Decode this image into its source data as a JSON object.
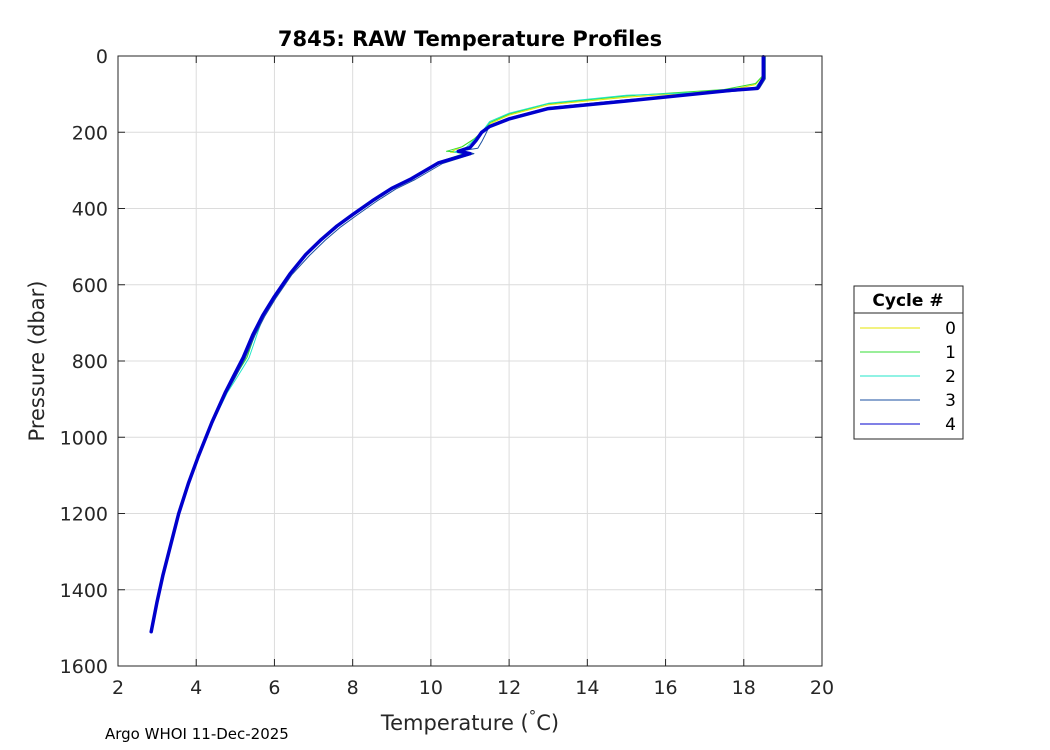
{
  "chart_data": {
    "type": "line",
    "title": "7845: RAW Temperature Profiles",
    "xlabel_main": "Temperature (",
    "xlabel_degree": "°",
    "xlabel_unit": "C)",
    "ylabel": "Pressure (dbar)",
    "xlim": [
      2,
      20
    ],
    "ylim": [
      0,
      1600
    ],
    "y_reversed": true,
    "x_ticks": [
      2,
      4,
      6,
      8,
      10,
      12,
      14,
      16,
      18,
      20
    ],
    "y_ticks": [
      0,
      200,
      400,
      600,
      800,
      1000,
      1200,
      1400,
      1600
    ],
    "grid": true,
    "legend": {
      "title": "Cycle #",
      "placement": "outside-right"
    },
    "series": [
      {
        "name": "0",
        "color": "#e6e600",
        "points": [
          [
            18.5,
            2
          ],
          [
            18.5,
            50
          ],
          [
            18.3,
            75
          ],
          [
            17.6,
            90
          ],
          [
            15.0,
            108
          ],
          [
            13.0,
            128
          ],
          [
            12.0,
            155
          ],
          [
            11.5,
            178
          ],
          [
            11.3,
            200
          ],
          [
            11.1,
            218
          ],
          [
            10.8,
            238
          ],
          [
            10.5,
            252
          ],
          [
            10.9,
            255
          ],
          [
            10.2,
            278
          ],
          [
            9.5,
            320
          ],
          [
            9.0,
            345
          ],
          [
            8.5,
            378
          ],
          [
            8.0,
            415
          ],
          [
            7.6,
            445
          ],
          [
            7.2,
            480
          ],
          [
            6.8,
            520
          ],
          [
            6.4,
            570
          ],
          [
            6.0,
            630
          ],
          [
            5.7,
            680
          ],
          [
            5.45,
            730
          ],
          [
            5.2,
            790
          ],
          [
            4.95,
            840
          ],
          [
            4.75,
            880
          ],
          [
            4.4,
            960
          ],
          [
            4.05,
            1050
          ],
          [
            3.8,
            1120
          ],
          [
            3.55,
            1200
          ],
          [
            3.35,
            1280
          ],
          [
            3.15,
            1360
          ],
          [
            3.0,
            1430
          ],
          [
            2.85,
            1510
          ]
        ]
      },
      {
        "name": "1",
        "color": "#33dd33",
        "points": [
          [
            18.5,
            2
          ],
          [
            18.5,
            50
          ],
          [
            18.3,
            72
          ],
          [
            17.5,
            88
          ],
          [
            15.0,
            105
          ],
          [
            13.0,
            125
          ],
          [
            12.0,
            152
          ],
          [
            11.5,
            175
          ],
          [
            11.3,
            200
          ],
          [
            11.1,
            218
          ],
          [
            10.8,
            238
          ],
          [
            10.4,
            250
          ],
          [
            10.9,
            254
          ],
          [
            10.2,
            278
          ],
          [
            9.5,
            320
          ],
          [
            9.0,
            345
          ],
          [
            8.5,
            378
          ],
          [
            8.0,
            415
          ],
          [
            7.6,
            445
          ],
          [
            7.2,
            480
          ],
          [
            6.8,
            520
          ],
          [
            6.4,
            570
          ],
          [
            6.0,
            630
          ],
          [
            5.72,
            680
          ],
          [
            5.5,
            730
          ],
          [
            5.3,
            790
          ],
          [
            5.0,
            840
          ],
          [
            4.75,
            880
          ],
          [
            4.4,
            960
          ],
          [
            4.05,
            1050
          ],
          [
            3.8,
            1120
          ],
          [
            3.55,
            1200
          ],
          [
            3.35,
            1280
          ],
          [
            3.15,
            1360
          ],
          [
            3.0,
            1430
          ],
          [
            2.85,
            1510
          ]
        ]
      },
      {
        "name": "2",
        "color": "#22e6c8",
        "points": [
          [
            18.5,
            2
          ],
          [
            18.5,
            55
          ],
          [
            18.3,
            82
          ],
          [
            17.5,
            93
          ],
          [
            15.0,
            103
          ],
          [
            13.0,
            124
          ],
          [
            12.0,
            150
          ],
          [
            11.5,
            172
          ],
          [
            11.3,
            200
          ],
          [
            11.1,
            220
          ],
          [
            10.9,
            240
          ],
          [
            10.6,
            252
          ],
          [
            10.95,
            258
          ],
          [
            10.2,
            280
          ],
          [
            9.5,
            322
          ],
          [
            9.0,
            347
          ],
          [
            8.5,
            380
          ],
          [
            8.0,
            416
          ],
          [
            7.6,
            446
          ],
          [
            7.2,
            481
          ],
          [
            6.8,
            521
          ],
          [
            6.4,
            571
          ],
          [
            6.0,
            631
          ],
          [
            5.72,
            682
          ],
          [
            5.55,
            732
          ],
          [
            5.35,
            792
          ],
          [
            5.05,
            842
          ],
          [
            4.8,
            882
          ],
          [
            4.42,
            962
          ],
          [
            4.06,
            1052
          ],
          [
            3.8,
            1122
          ],
          [
            3.56,
            1202
          ],
          [
            3.35,
            1282
          ],
          [
            3.15,
            1362
          ],
          [
            3.0,
            1432
          ],
          [
            2.85,
            1510
          ]
        ]
      },
      {
        "name": "3",
        "color": "#1a4fa0",
        "points": [
          [
            18.55,
            2
          ],
          [
            18.55,
            60
          ],
          [
            18.4,
            85
          ],
          [
            17.8,
            92
          ],
          [
            15.0,
            115
          ],
          [
            13.0,
            135
          ],
          [
            12.0,
            162
          ],
          [
            11.5,
            182
          ],
          [
            11.4,
            205
          ],
          [
            11.3,
            225
          ],
          [
            11.2,
            242
          ],
          [
            10.8,
            248
          ],
          [
            11.1,
            256
          ],
          [
            10.3,
            282
          ],
          [
            9.6,
            324
          ],
          [
            9.1,
            349
          ],
          [
            8.6,
            382
          ],
          [
            8.1,
            418
          ],
          [
            7.7,
            448
          ],
          [
            7.3,
            483
          ],
          [
            6.9,
            523
          ],
          [
            6.45,
            573
          ],
          [
            6.05,
            633
          ],
          [
            5.75,
            683
          ],
          [
            5.5,
            733
          ],
          [
            5.25,
            793
          ],
          [
            5.0,
            843
          ],
          [
            4.78,
            883
          ],
          [
            4.42,
            963
          ],
          [
            4.06,
            1053
          ],
          [
            3.81,
            1123
          ],
          [
            3.56,
            1203
          ],
          [
            3.36,
            1283
          ],
          [
            3.16,
            1363
          ],
          [
            3.0,
            1433
          ],
          [
            2.85,
            1510
          ]
        ]
      },
      {
        "name": "4",
        "color": "#0000cc",
        "points": [
          [
            18.5,
            2
          ],
          [
            18.5,
            58
          ],
          [
            18.35,
            85
          ],
          [
            17.7,
            90
          ],
          [
            15.0,
            118
          ],
          [
            13.0,
            138
          ],
          [
            12.0,
            165
          ],
          [
            11.5,
            185
          ],
          [
            11.3,
            200
          ],
          [
            11.15,
            222
          ],
          [
            11.0,
            240
          ],
          [
            10.7,
            250
          ],
          [
            11.0,
            256
          ],
          [
            10.2,
            280
          ],
          [
            9.5,
            322
          ],
          [
            9.0,
            347
          ],
          [
            8.5,
            380
          ],
          [
            8.0,
            416
          ],
          [
            7.6,
            446
          ],
          [
            7.2,
            481
          ],
          [
            6.8,
            521
          ],
          [
            6.4,
            571
          ],
          [
            6.0,
            631
          ],
          [
            5.7,
            681
          ],
          [
            5.45,
            731
          ],
          [
            5.2,
            791
          ],
          [
            4.95,
            841
          ],
          [
            4.75,
            881
          ],
          [
            4.4,
            961
          ],
          [
            4.05,
            1051
          ],
          [
            3.8,
            1121
          ],
          [
            3.55,
            1201
          ],
          [
            3.35,
            1281
          ],
          [
            3.15,
            1361
          ],
          [
            3.0,
            1431
          ],
          [
            2.85,
            1510
          ]
        ]
      }
    ]
  },
  "footer": {
    "note": "Argo WHOI 11-Dec-2025"
  }
}
